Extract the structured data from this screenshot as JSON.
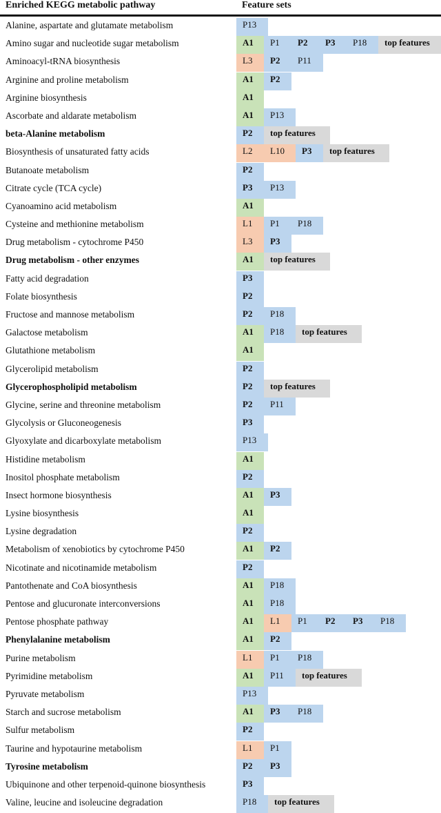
{
  "header": {
    "col1": "Enriched KEGG metabolic pathway",
    "col2": "Feature sets"
  },
  "rows": [
    {
      "pathway": "Alanine, aspartate and glutamate metabolism",
      "bold": false,
      "cells": [
        {
          "t": "P13",
          "k": "P",
          "b": false
        }
      ]
    },
    {
      "pathway": "Amino sugar and nucleotide sugar metabolism",
      "bold": false,
      "cells": [
        {
          "t": "A1",
          "k": "A",
          "b": true
        },
        {
          "t": "P1",
          "k": "P",
          "b": false
        },
        {
          "t": "P2",
          "k": "P",
          "b": true
        },
        {
          "t": "P3",
          "k": "P",
          "b": true
        },
        {
          "t": "P18",
          "k": "P",
          "b": false
        },
        {
          "t": "top features",
          "k": "T",
          "b": true
        }
      ]
    },
    {
      "pathway": "Aminoacyl-tRNA biosynthesis",
      "bold": false,
      "cells": [
        {
          "t": "L3",
          "k": "L",
          "b": false
        },
        {
          "t": "P2",
          "k": "P",
          "b": true
        },
        {
          "t": "P11",
          "k": "P",
          "b": false
        }
      ]
    },
    {
      "pathway": "Arginine and proline metabolism",
      "bold": false,
      "cells": [
        {
          "t": "A1",
          "k": "A",
          "b": true
        },
        {
          "t": "P2",
          "k": "P",
          "b": true
        }
      ]
    },
    {
      "pathway": "Arginine biosynthesis",
      "bold": false,
      "cells": [
        {
          "t": "A1",
          "k": "A",
          "b": true
        }
      ]
    },
    {
      "pathway": "Ascorbate and aldarate metabolism",
      "bold": false,
      "cells": [
        {
          "t": "A1",
          "k": "A",
          "b": true
        },
        {
          "t": "P13",
          "k": "P",
          "b": false
        }
      ]
    },
    {
      "pathway": "beta-Alanine metabolism",
      "bold": true,
      "cells": [
        {
          "t": "P2",
          "k": "P",
          "b": true
        },
        {
          "t": "top features",
          "k": "T",
          "b": true
        }
      ]
    },
    {
      "pathway": "Biosynthesis of unsaturated fatty acids",
      "bold": false,
      "cells": [
        {
          "t": "L2",
          "k": "L",
          "b": false
        },
        {
          "t": "L10",
          "k": "L",
          "b": false
        },
        {
          "t": "P3",
          "k": "P",
          "b": true
        },
        {
          "t": "top features",
          "k": "T",
          "b": true
        }
      ]
    },
    {
      "pathway": "Butanoate metabolism",
      "bold": false,
      "cells": [
        {
          "t": "P2",
          "k": "P",
          "b": true
        }
      ]
    },
    {
      "pathway": "Citrate cycle (TCA cycle)",
      "bold": false,
      "cells": [
        {
          "t": "P3",
          "k": "P",
          "b": true
        },
        {
          "t": "P13",
          "k": "P",
          "b": false
        }
      ]
    },
    {
      "pathway": "Cyanoamino acid metabolism",
      "bold": false,
      "cells": [
        {
          "t": "A1",
          "k": "A",
          "b": true
        }
      ]
    },
    {
      "pathway": "Cysteine and methionine metabolism",
      "bold": false,
      "cells": [
        {
          "t": "L1",
          "k": "L",
          "b": false
        },
        {
          "t": "P1",
          "k": "P",
          "b": false
        },
        {
          "t": "P18",
          "k": "P",
          "b": false
        }
      ]
    },
    {
      "pathway": "Drug metabolism - cytochrome P450",
      "bold": false,
      "cells": [
        {
          "t": "L3",
          "k": "L",
          "b": false
        },
        {
          "t": "P3",
          "k": "P",
          "b": true
        }
      ]
    },
    {
      "pathway": "Drug metabolism - other enzymes",
      "bold": true,
      "cells": [
        {
          "t": "A1",
          "k": "A",
          "b": true
        },
        {
          "t": "top features",
          "k": "T",
          "b": true
        }
      ]
    },
    {
      "pathway": "Fatty acid degradation",
      "bold": false,
      "cells": [
        {
          "t": "P3",
          "k": "P",
          "b": true
        }
      ]
    },
    {
      "pathway": "Folate biosynthesis",
      "bold": false,
      "cells": [
        {
          "t": "P2",
          "k": "P",
          "b": true
        }
      ]
    },
    {
      "pathway": "Fructose and mannose metabolism",
      "bold": false,
      "cells": [
        {
          "t": "P2",
          "k": "P",
          "b": true
        },
        {
          "t": "P18",
          "k": "P",
          "b": false
        }
      ]
    },
    {
      "pathway": "Galactose metabolism",
      "bold": false,
      "cells": [
        {
          "t": "A1",
          "k": "A",
          "b": true
        },
        {
          "t": "P18",
          "k": "P",
          "b": false
        },
        {
          "t": "top features",
          "k": "T",
          "b": true
        }
      ]
    },
    {
      "pathway": "Glutathione metabolism",
      "bold": false,
      "cells": [
        {
          "t": "A1",
          "k": "A",
          "b": true
        }
      ]
    },
    {
      "pathway": "Glycerolipid metabolism",
      "bold": false,
      "cells": [
        {
          "t": "P2",
          "k": "P",
          "b": true
        }
      ]
    },
    {
      "pathway": "Glycerophospholipid metabolism",
      "bold": true,
      "cells": [
        {
          "t": "P2",
          "k": "P",
          "b": true
        },
        {
          "t": "top features",
          "k": "T",
          "b": true
        }
      ]
    },
    {
      "pathway": "Glycine, serine and threonine metabolism",
      "bold": false,
      "cells": [
        {
          "t": "P2",
          "k": "P",
          "b": true
        },
        {
          "t": "P11",
          "k": "P",
          "b": false
        }
      ]
    },
    {
      "pathway": "Glycolysis or Gluconeogenesis",
      "bold": false,
      "cells": [
        {
          "t": "P3",
          "k": "P",
          "b": true
        }
      ]
    },
    {
      "pathway": "Glyoxylate and dicarboxylate metabolism",
      "bold": false,
      "cells": [
        {
          "t": "P13",
          "k": "P",
          "b": false
        }
      ]
    },
    {
      "pathway": "Histidine metabolism",
      "bold": false,
      "cells": [
        {
          "t": "A1",
          "k": "A",
          "b": true
        }
      ]
    },
    {
      "pathway": "Inositol phosphate metabolism",
      "bold": false,
      "cells": [
        {
          "t": "P2",
          "k": "P",
          "b": true
        }
      ]
    },
    {
      "pathway": "Insect hormone biosynthesis",
      "bold": false,
      "cells": [
        {
          "t": "A1",
          "k": "A",
          "b": true
        },
        {
          "t": "P3",
          "k": "P",
          "b": true
        }
      ]
    },
    {
      "pathway": "Lysine biosynthesis",
      "bold": false,
      "cells": [
        {
          "t": "A1",
          "k": "A",
          "b": true
        }
      ]
    },
    {
      "pathway": "Lysine degradation",
      "bold": false,
      "cells": [
        {
          "t": "P2",
          "k": "P",
          "b": true
        }
      ]
    },
    {
      "pathway": "Metabolism of xenobiotics by cytochrome P450",
      "bold": false,
      "cells": [
        {
          "t": "A1",
          "k": "A",
          "b": true
        },
        {
          "t": "P2",
          "k": "P",
          "b": true
        }
      ]
    },
    {
      "pathway": "Nicotinate and nicotinamide metabolism",
      "bold": false,
      "cells": [
        {
          "t": "P2",
          "k": "P",
          "b": true
        }
      ]
    },
    {
      "pathway": "Pantothenate and CoA biosynthesis",
      "bold": false,
      "cells": [
        {
          "t": "A1",
          "k": "A",
          "b": true
        },
        {
          "t": "P18",
          "k": "P",
          "b": false
        }
      ]
    },
    {
      "pathway": "Pentose and glucuronate interconversions",
      "bold": false,
      "cells": [
        {
          "t": "A1",
          "k": "A",
          "b": true
        },
        {
          "t": "P18",
          "k": "P",
          "b": false
        }
      ]
    },
    {
      "pathway": "Pentose phosphate pathway",
      "bold": false,
      "cells": [
        {
          "t": "A1",
          "k": "A",
          "b": true
        },
        {
          "t": "L1",
          "k": "L",
          "b": false
        },
        {
          "t": "P1",
          "k": "P",
          "b": false
        },
        {
          "t": "P2",
          "k": "P",
          "b": true
        },
        {
          "t": "P3",
          "k": "P",
          "b": true
        },
        {
          "t": "P18",
          "k": "P",
          "b": false
        }
      ]
    },
    {
      "pathway": "Phenylalanine metabolism",
      "bold": true,
      "cells": [
        {
          "t": "A1",
          "k": "A",
          "b": true
        },
        {
          "t": "P2",
          "k": "P",
          "b": true
        }
      ]
    },
    {
      "pathway": "Purine metabolism",
      "bold": false,
      "cells": [
        {
          "t": "L1",
          "k": "L",
          "b": false
        },
        {
          "t": "P1",
          "k": "P",
          "b": false
        },
        {
          "t": "P18",
          "k": "P",
          "b": false
        }
      ]
    },
    {
      "pathway": "Pyrimidine metabolism",
      "bold": false,
      "cells": [
        {
          "t": "A1",
          "k": "A",
          "b": true
        },
        {
          "t": "P11",
          "k": "P",
          "b": false
        },
        {
          "t": "top features",
          "k": "T",
          "b": true
        }
      ]
    },
    {
      "pathway": "Pyruvate metabolism",
      "bold": false,
      "cells": [
        {
          "t": "P13",
          "k": "P",
          "b": false
        }
      ]
    },
    {
      "pathway": "Starch and sucrose metabolism",
      "bold": false,
      "cells": [
        {
          "t": "A1",
          "k": "A",
          "b": true
        },
        {
          "t": "P3",
          "k": "P",
          "b": true
        },
        {
          "t": "P18",
          "k": "P",
          "b": false
        }
      ]
    },
    {
      "pathway": "Sulfur metabolism",
      "bold": false,
      "cells": [
        {
          "t": "P2",
          "k": "P",
          "b": true
        }
      ]
    },
    {
      "pathway": "Taurine and hypotaurine metabolism",
      "bold": false,
      "cells": [
        {
          "t": "L1",
          "k": "L",
          "b": false
        },
        {
          "t": "P1",
          "k": "P",
          "b": false
        }
      ]
    },
    {
      "pathway": "Tyrosine metabolism",
      "bold": true,
      "cells": [
        {
          "t": "P2",
          "k": "P",
          "b": true
        },
        {
          "t": "P3",
          "k": "P",
          "b": true
        }
      ]
    },
    {
      "pathway": "Ubiquinone and other terpenoid-quinone biosynthesis",
      "bold": false,
      "cells": [
        {
          "t": "P3",
          "k": "P",
          "b": true
        }
      ]
    },
    {
      "pathway": "Valine, leucine and isoleucine degradation",
      "bold": false,
      "cells": [
        {
          "t": "P18",
          "k": "P",
          "b": false
        },
        {
          "t": "top features",
          "k": "T",
          "b": true
        }
      ]
    }
  ]
}
